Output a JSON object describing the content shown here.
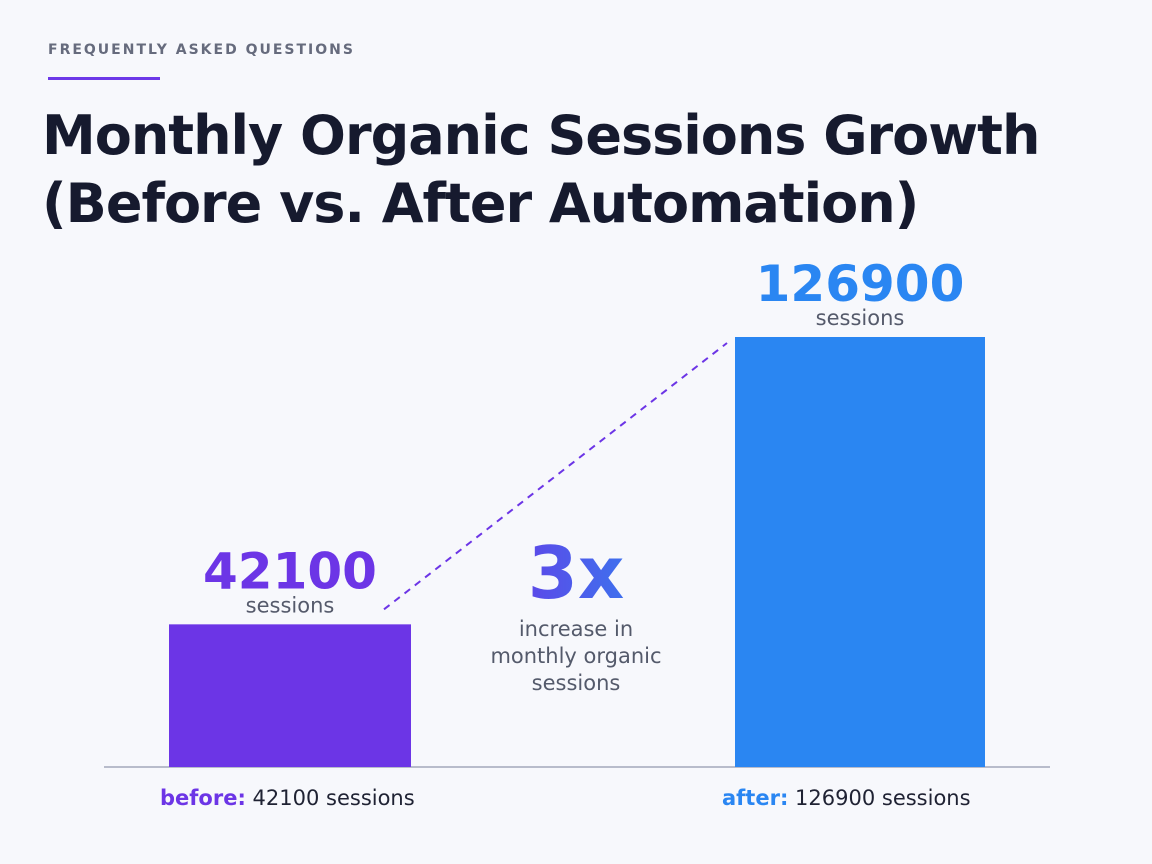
{
  "header": {
    "eyebrow": "FREQUENTLY ASKED QUESTIONS",
    "title_line1": "Monthly Organic Sessions Growth",
    "title_line2": "(Before vs. After Automation)"
  },
  "callout": {
    "multiplier": "3x",
    "caption_lines": [
      "increase in",
      "monthly organic",
      "sessions"
    ]
  },
  "colors": {
    "before": "#6c35e6",
    "after": "#2a86f2",
    "axis": "#b8bccb",
    "unit_text": "#555a6b"
  },
  "chart_data": {
    "type": "bar",
    "categories": [
      "before",
      "after"
    ],
    "values": [
      42100,
      126900
    ],
    "unit": "sessions",
    "value_labels": [
      "42100",
      "126900"
    ],
    "axis_labels": [
      {
        "keyword": "before:",
        "text": "42100 sessions"
      },
      {
        "keyword": "after:",
        "text": "126900 sessions"
      }
    ],
    "ylim": [
      0,
      126900
    ],
    "grid": false,
    "legend": "none"
  }
}
